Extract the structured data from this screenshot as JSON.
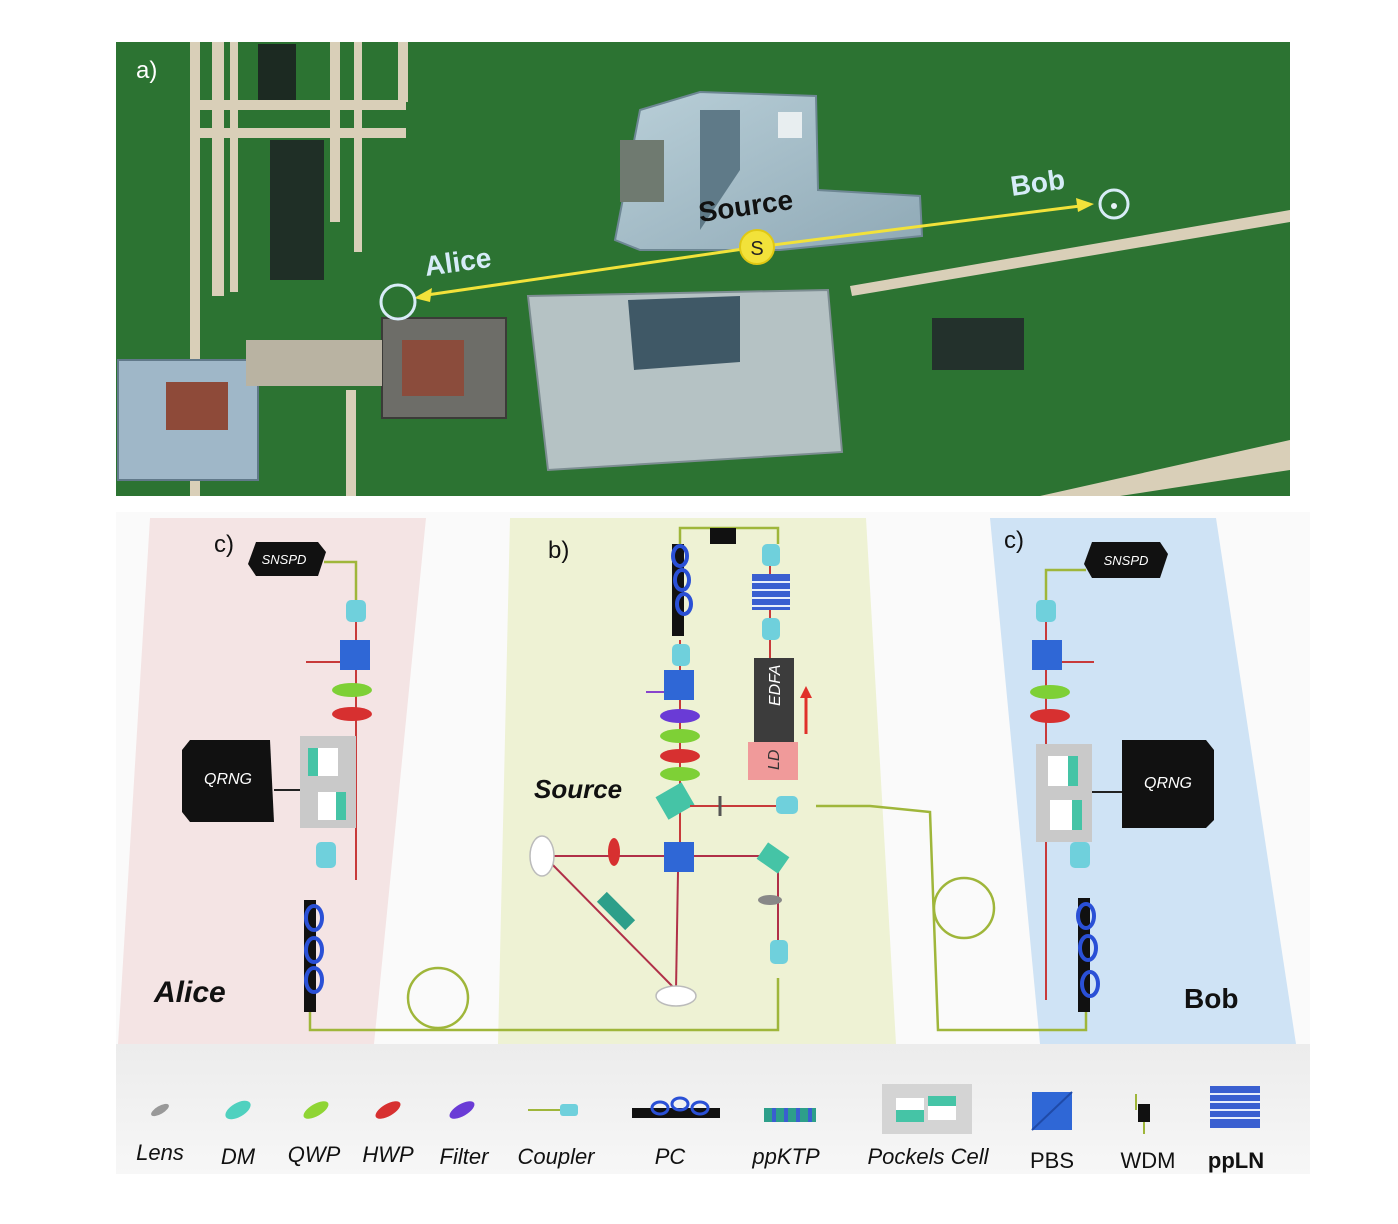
{
  "panel_a": {
    "label": "a)",
    "source_label": "Source",
    "source_marker": "S",
    "alice_label": "Alice",
    "bob_label": "Bob",
    "colors": {
      "grass": "#2f7a34",
      "link": "#f2e23a",
      "marker_ring": "#cfe6f5"
    }
  },
  "panel_b": {
    "label": "b)",
    "title": "Source",
    "edfa_label": "EDFA",
    "ld_label": "LD",
    "bg": "#eef2d4"
  },
  "panel_c_alice": {
    "label": "c)",
    "detector_label": "SNSPD",
    "rng_label": "QRNG",
    "name": "Alice",
    "bg": "#f4e4e4"
  },
  "panel_c_bob": {
    "label": "c)",
    "detector_label": "SNSPD",
    "rng_label": "QRNG",
    "name": "Bob",
    "bg": "#cfe3f5"
  },
  "legend": {
    "items": [
      {
        "icon": "lens-icon",
        "label": "Lens"
      },
      {
        "icon": "dichroic-mirror-icon",
        "label": "DM"
      },
      {
        "icon": "quarter-wave-plate-icon",
        "label": "QWP"
      },
      {
        "icon": "half-wave-plate-icon",
        "label": "HWP"
      },
      {
        "icon": "filter-icon",
        "label": "Filter"
      },
      {
        "icon": "coupler-icon",
        "label": "Coupler"
      },
      {
        "icon": "polarization-controller-icon",
        "label": "PC"
      },
      {
        "icon": "ppktp-crystal-icon",
        "label": "ppKTP"
      },
      {
        "icon": "pockels-cell-icon",
        "label": "Pockels Cell"
      },
      {
        "icon": "pbs-icon",
        "label": "PBS"
      },
      {
        "icon": "wdm-icon",
        "label": "WDM"
      },
      {
        "icon": "ppln-crystal-icon",
        "label": "ppLN"
      }
    ]
  }
}
